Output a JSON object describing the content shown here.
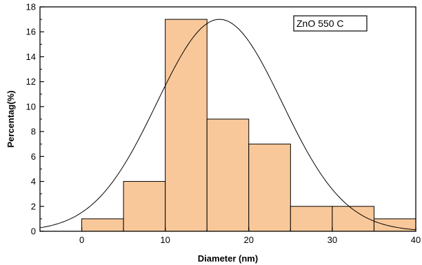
{
  "chart_data": {
    "type": "bar",
    "title": "",
    "xlabel": "Diameter (nm)",
    "ylabel": "Percentag(%)",
    "xlim": [
      -5,
      40
    ],
    "ylim": [
      0,
      18
    ],
    "xticks": [
      0,
      10,
      20,
      30,
      40
    ],
    "yticks": [
      0,
      2,
      4,
      6,
      8,
      10,
      12,
      14,
      16,
      18
    ],
    "bin_edges": [
      0,
      5,
      10,
      15,
      20,
      25,
      30,
      35,
      40
    ],
    "values": [
      1,
      4,
      17,
      9,
      7,
      2,
      2,
      1
    ],
    "fit_curve": {
      "type": "gaussian",
      "mean": 16.5,
      "sigma": 7.5,
      "peak": 17
    },
    "legend": {
      "text": "ZnO 550 C",
      "placement": "top-right"
    },
    "grid": false,
    "colors": {
      "bar_fill": "#f9c89a",
      "bar_stroke": "#000000",
      "curve": "#000000"
    }
  }
}
